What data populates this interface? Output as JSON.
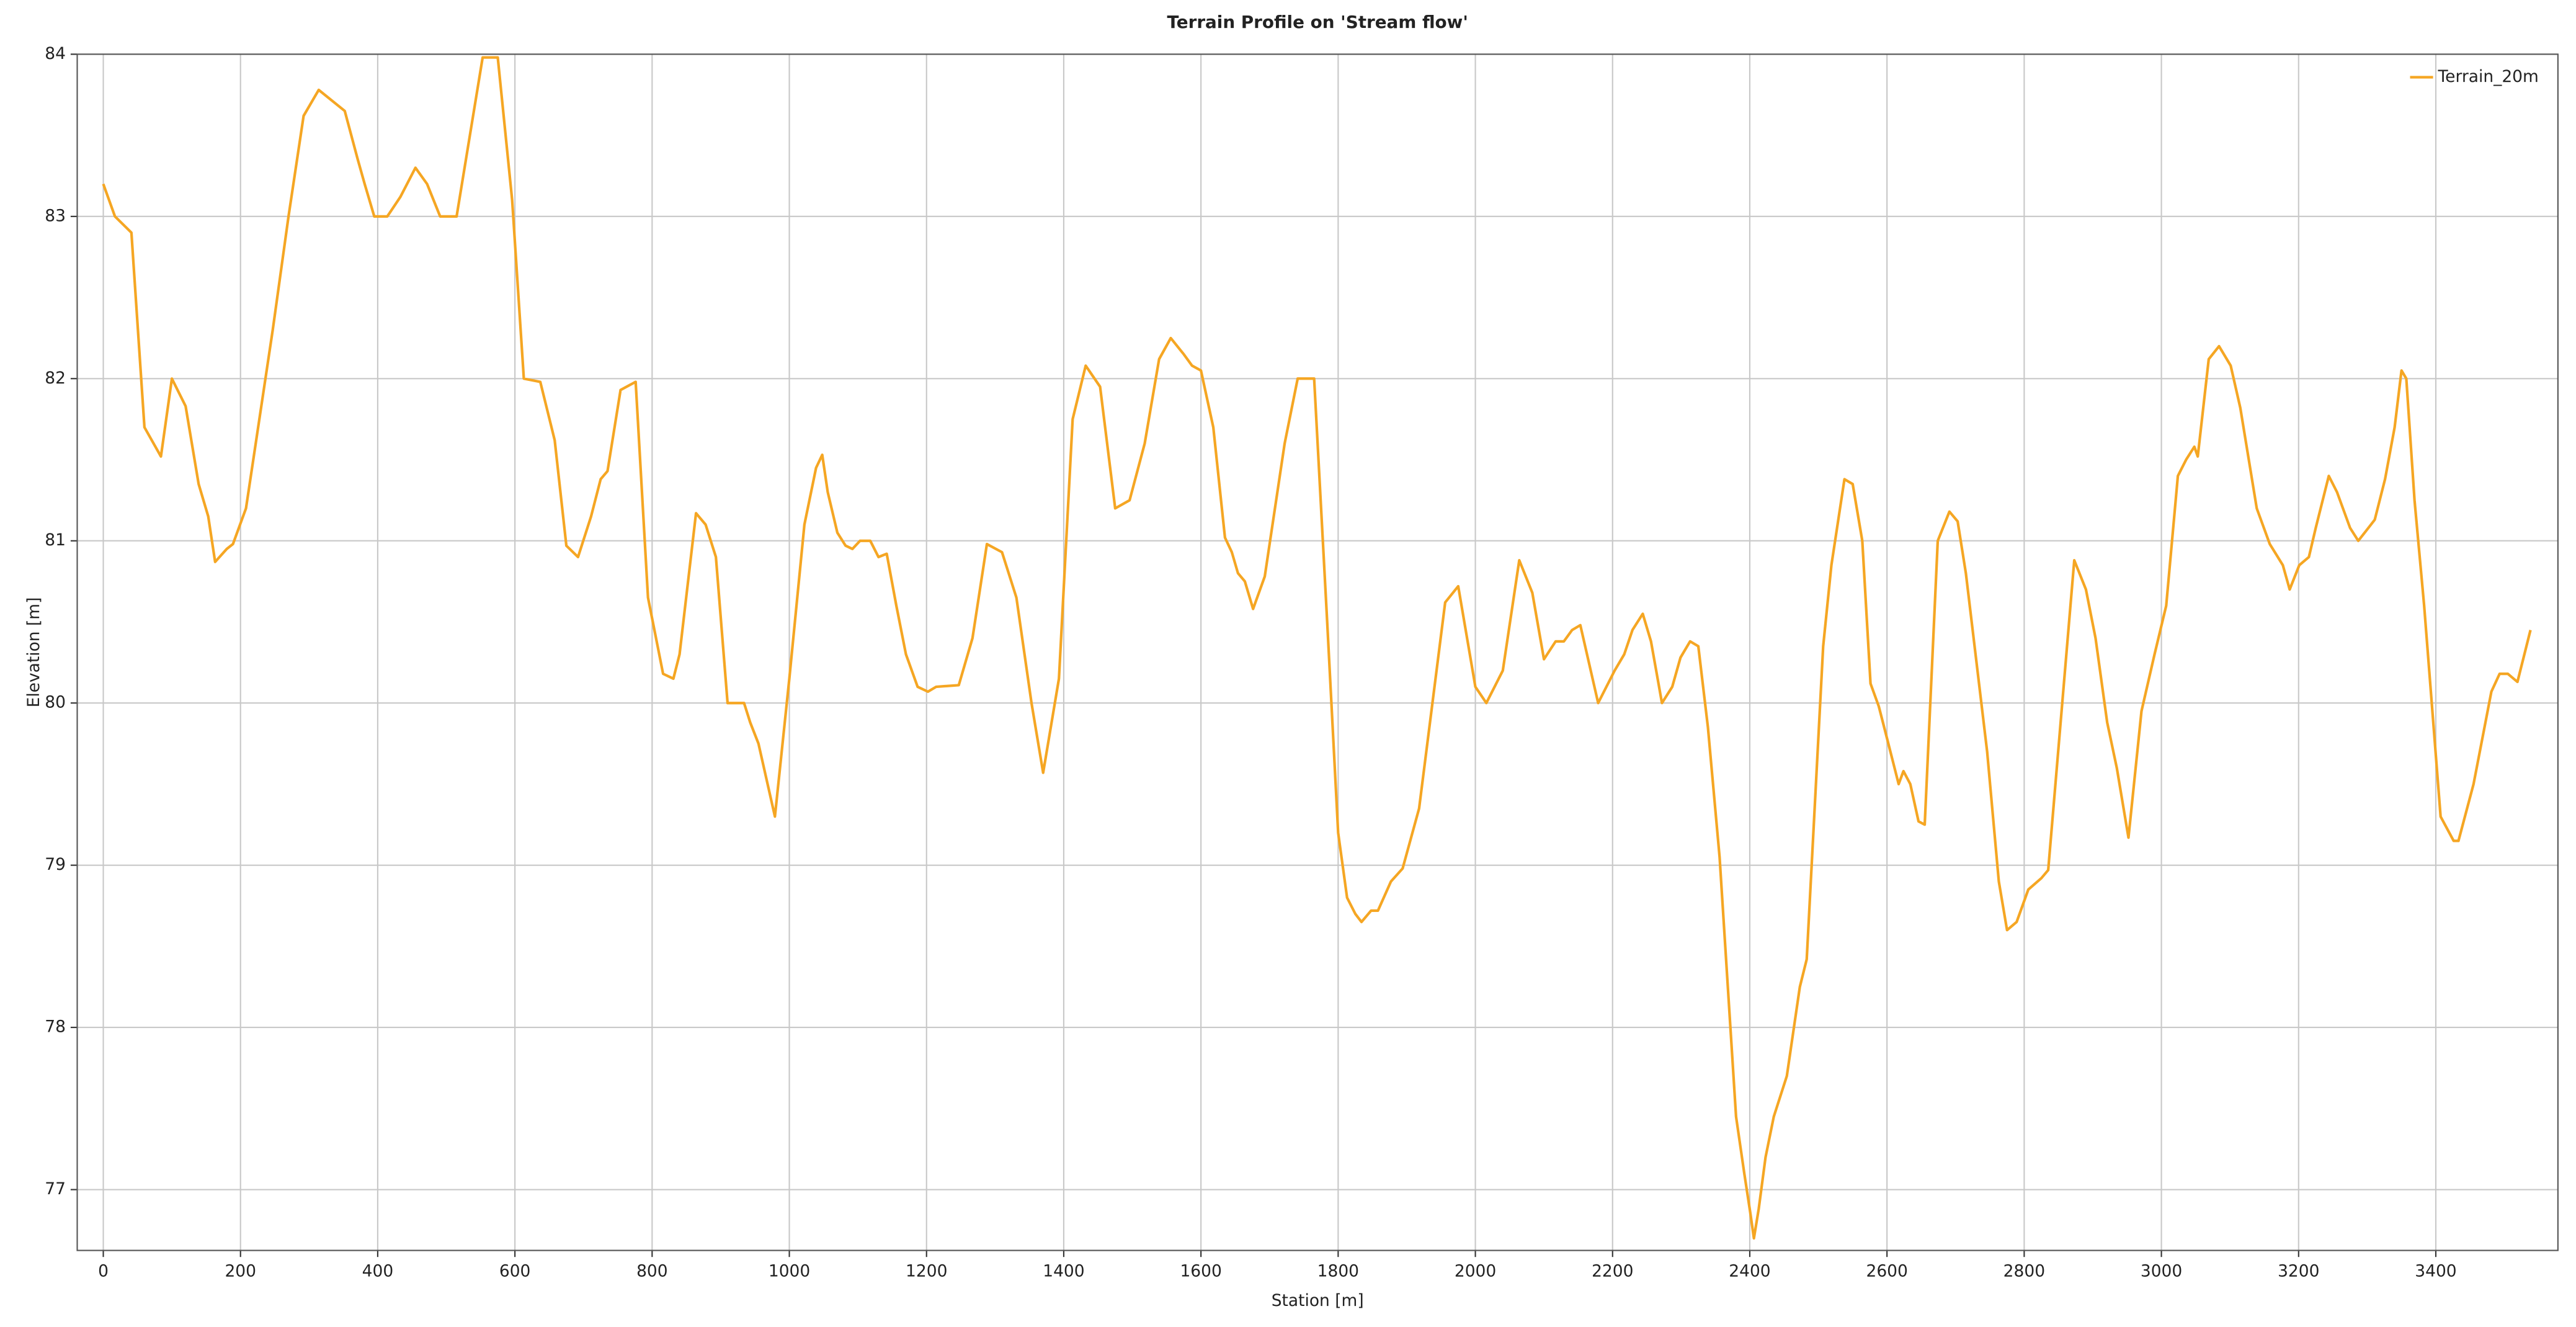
{
  "chart_data": {
    "type": "line",
    "title": "Terrain Profile on 'Stream flow'",
    "x_label": "Station [m]",
    "y_label": "Elevation [m]",
    "legend": "top-right",
    "grid": true,
    "xlim": [
      -38,
      3578
    ],
    "ylim": [
      76.625,
      84
    ],
    "xticks": [
      0,
      200,
      400,
      600,
      800,
      1000,
      1200,
      1400,
      1600,
      1800,
      2000,
      2200,
      2400,
      2600,
      2800,
      3000,
      3200,
      3400
    ],
    "yticks": [
      77,
      78,
      79,
      80,
      81,
      82,
      83,
      84
    ],
    "x": [
      0,
      17,
      41,
      60,
      84,
      100,
      120,
      139,
      153,
      163,
      180,
      189,
      208,
      247,
      270,
      292,
      314,
      352,
      371,
      381,
      395,
      414,
      433,
      455,
      472,
      491,
      515,
      553,
      575,
      596,
      613,
      637,
      658,
      675,
      692,
      711,
      725,
      735,
      754,
      776,
      794,
      816,
      831,
      840,
      864,
      878,
      893,
      910,
      934,
      943,
      955,
      979,
      1000,
      1022,
      1039,
      1048,
      1056,
      1070,
      1082,
      1092,
      1103,
      1118,
      1130,
      1142,
      1156,
      1170,
      1187,
      1202,
      1214,
      1247,
      1267,
      1288,
      1310,
      1331,
      1353,
      1370,
      1393,
      1413,
      1432,
      1453,
      1475,
      1496,
      1518,
      1539,
      1556,
      1575,
      1587,
      1600,
      1618,
      1635,
      1645,
      1654,
      1664,
      1676,
      1693,
      1722,
      1741,
      1765,
      1784,
      1800,
      1813,
      1825,
      1834,
      1848,
      1858,
      1877,
      1894,
      1918,
      1956,
      1975,
      2000,
      2016,
      2040,
      2064,
      2083,
      2100,
      2117,
      2129,
      2141,
      2153,
      2179,
      2203,
      2217,
      2229,
      2244,
      2256,
      2272,
      2287,
      2299,
      2313,
      2325,
      2339,
      2356,
      2368,
      2380,
      2392,
      2401,
      2406,
      2413,
      2423,
      2435,
      2454,
      2473,
      2483,
      2507,
      2519,
      2538,
      2550,
      2564,
      2576,
      2588,
      2602,
      2617,
      2624,
      2634,
      2646,
      2655,
      2674,
      2691,
      2703,
      2715,
      2746,
      2763,
      2775,
      2789,
      2806,
      2825,
      2835,
      2873,
      2890,
      2904,
      2921,
      2935,
      2952,
      2971,
      2990,
      3007,
      3024,
      3036,
      3048,
      3053,
      3069,
      3084,
      3101,
      3115,
      3139,
      3158,
      3177,
      3187,
      3201,
      3215,
      3225,
      3244,
      3256,
      3275,
      3287,
      3311,
      3326,
      3340,
      3350,
      3357,
      3369,
      3383,
      3407,
      3426,
      3433,
      3455,
      3481,
      3493,
      3505,
      3519,
      3538
    ],
    "series": [
      {
        "name": "Terrain_20m",
        "color": "#f5a623",
        "values": [
          83.2,
          83.0,
          82.9,
          81.7,
          81.52,
          82.0,
          81.83,
          81.35,
          81.15,
          80.87,
          80.95,
          80.98,
          81.2,
          82.3,
          83.0,
          83.62,
          83.78,
          83.65,
          83.35,
          83.2,
          83.0,
          83.0,
          83.12,
          83.3,
          83.2,
          83.0,
          83.0,
          83.98,
          83.98,
          83.1,
          82.0,
          81.98,
          81.62,
          80.97,
          80.9,
          81.15,
          81.38,
          81.43,
          81.93,
          81.98,
          80.65,
          80.18,
          80.15,
          80.3,
          81.17,
          81.1,
          80.9,
          80.0,
          80.0,
          79.88,
          79.75,
          79.3,
          80.15,
          81.1,
          81.45,
          81.53,
          81.3,
          81.05,
          80.97,
          80.95,
          81.0,
          81.0,
          80.9,
          80.92,
          80.6,
          80.3,
          80.1,
          80.07,
          80.1,
          80.11,
          80.4,
          80.98,
          80.93,
          80.65,
          80.0,
          79.57,
          80.15,
          81.75,
          82.08,
          81.95,
          81.2,
          81.25,
          81.6,
          82.12,
          82.25,
          82.15,
          82.08,
          82.05,
          81.7,
          81.02,
          80.93,
          80.8,
          80.75,
          80.58,
          80.78,
          81.6,
          82.0,
          82.0,
          80.5,
          79.2,
          78.8,
          78.7,
          78.65,
          78.72,
          78.72,
          78.9,
          78.98,
          79.35,
          80.62,
          80.72,
          80.1,
          80.0,
          80.2,
          80.88,
          80.68,
          80.27,
          80.38,
          80.38,
          80.45,
          80.48,
          80.0,
          80.2,
          80.3,
          80.45,
          80.55,
          80.38,
          80.0,
          80.1,
          80.28,
          80.38,
          80.35,
          79.85,
          79.05,
          78.25,
          77.45,
          77.1,
          76.85,
          76.7,
          76.88,
          77.2,
          77.45,
          77.7,
          78.25,
          78.42,
          80.35,
          80.85,
          81.38,
          81.35,
          81.0,
          80.12,
          79.98,
          79.75,
          79.5,
          79.58,
          79.5,
          79.27,
          79.25,
          81.0,
          81.18,
          81.12,
          80.8,
          79.7,
          78.9,
          78.6,
          78.65,
          78.85,
          78.92,
          78.97,
          80.88,
          80.7,
          80.4,
          79.88,
          79.6,
          79.17,
          79.95,
          80.3,
          80.6,
          81.4,
          81.5,
          81.58,
          81.52,
          82.12,
          82.2,
          82.08,
          81.82,
          81.2,
          80.98,
          80.85,
          80.7,
          80.85,
          80.9,
          81.08,
          81.4,
          81.3,
          81.08,
          81.0,
          81.13,
          81.38,
          81.7,
          82.05,
          82.0,
          81.25,
          80.6,
          79.3,
          79.15,
          79.15,
          79.5,
          80.07,
          80.18,
          80.18,
          80.13,
          80.45
        ]
      }
    ]
  }
}
